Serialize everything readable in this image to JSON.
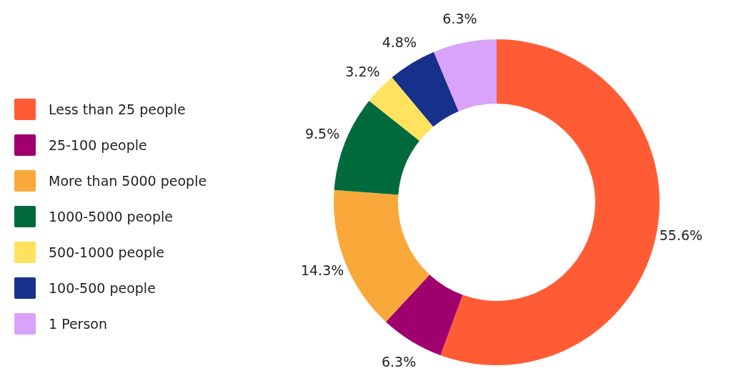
{
  "chart_data": {
    "type": "donut",
    "categories": [
      "Less than 25 people",
      "25-100 people",
      "More than 5000 people",
      "1000-5000 people",
      "500-1000 people",
      "100-500 people",
      "1 Person"
    ],
    "values": [
      55.6,
      6.3,
      14.3,
      9.5,
      3.2,
      4.8,
      6.3
    ],
    "colors": [
      "#ff5c35",
      "#a0006e",
      "#f9a93a",
      "#006a3d",
      "#ffe25e",
      "#17318a",
      "#d9a3fc"
    ],
    "value_labels": [
      "55.6%",
      "6.3%",
      "14.3%",
      "9.5%",
      "3.2%",
      "4.8%",
      "6.3%"
    ],
    "legend": "left"
  }
}
